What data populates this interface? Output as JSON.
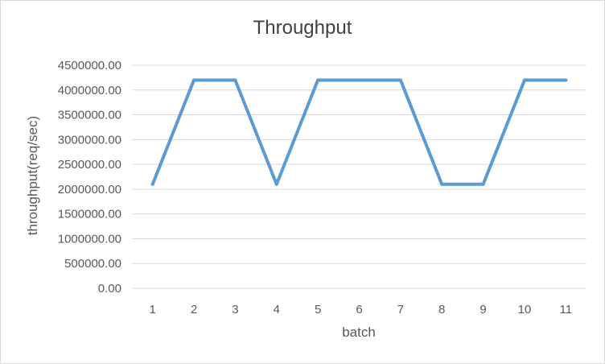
{
  "chart_data": {
    "type": "line",
    "title": "Throughput",
    "xlabel": "batch",
    "ylabel": "throughput(req/sec)",
    "categories": [
      "1",
      "2",
      "3",
      "4",
      "5",
      "6",
      "7",
      "8",
      "9",
      "10",
      "11"
    ],
    "series": [
      {
        "values": [
          2100000,
          4200000,
          4200000,
          2100000,
          4200000,
          4200000,
          4200000,
          2100000,
          2100000,
          4200000,
          4200000
        ],
        "color": "#5b9bd5"
      }
    ],
    "ylim": [
      0,
      4500000
    ],
    "yticks": [
      "0.00",
      "500000.00",
      "1000000.00",
      "1500000.00",
      "2000000.00",
      "2500000.00",
      "3000000.00",
      "3500000.00",
      "4000000.00",
      "4500000.00"
    ],
    "grid": true,
    "legend": "none",
    "gridline_color": "#d9d9d9"
  }
}
